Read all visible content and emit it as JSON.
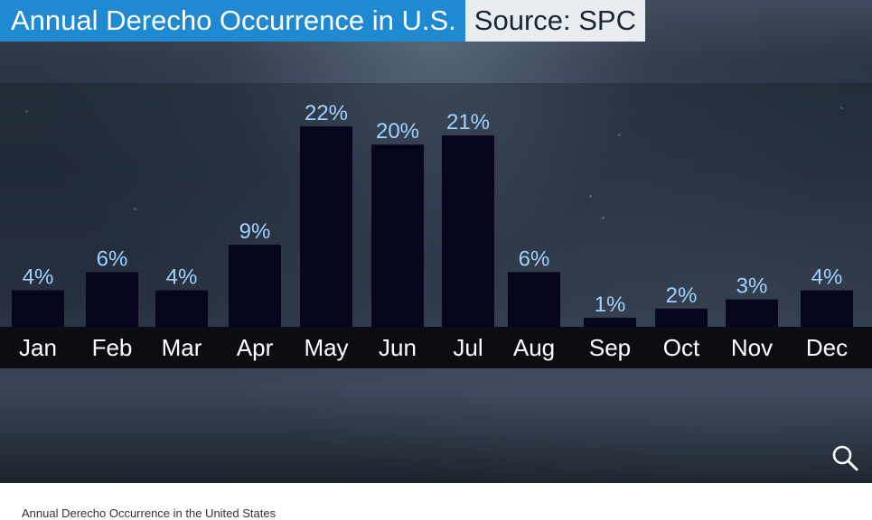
{
  "header": {
    "title": "Annual Derecho Occurrence in U.S.",
    "source": "Source: SPC"
  },
  "caption": "Annual Derecho Occurrence in the United States",
  "zoom": {
    "icon": "magnifier-icon"
  },
  "colors": {
    "title_bg": "#1f8ad2",
    "source_bg": "#e9edf0",
    "bar": "#05051e",
    "value_label": "#9fd2ff",
    "axis_strip": "#0b0d12"
  },
  "chart_data": {
    "type": "bar",
    "title": "Annual Derecho Occurrence in U.S.",
    "categories": [
      "Jan",
      "Feb",
      "Mar",
      "Apr",
      "May",
      "Jun",
      "Jul",
      "Aug",
      "Sep",
      "Oct",
      "Nov",
      "Dec"
    ],
    "values": [
      4,
      6,
      4,
      9,
      22,
      20,
      21,
      6,
      1,
      2,
      3,
      4
    ],
    "data_labels": [
      "4%",
      "6%",
      "4%",
      "9%",
      "22%",
      "20%",
      "21%",
      "6%",
      "1%",
      "2%",
      "3%",
      "4%"
    ],
    "xlabel": "",
    "ylabel": "",
    "unit": "%",
    "ylim": [
      0,
      22
    ],
    "grid": false,
    "legend": "none"
  }
}
